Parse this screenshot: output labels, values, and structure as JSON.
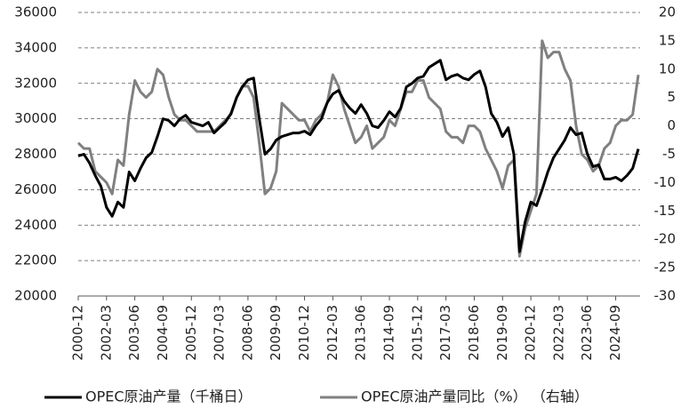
{
  "chart_data": {
    "type": "line",
    "categories": [
      "2000-12",
      null,
      null,
      null,
      null,
      "2002-03",
      null,
      null,
      null,
      null,
      "2003-06",
      null,
      null,
      null,
      null,
      "2004-09",
      null,
      null,
      null,
      null,
      "2005-12",
      null,
      null,
      null,
      null,
      "2007-03",
      null,
      null,
      null,
      null,
      "2008-06",
      null,
      null,
      null,
      null,
      "2009-09",
      null,
      null,
      null,
      null,
      "2010-12",
      null,
      null,
      null,
      null,
      "2012-03",
      null,
      null,
      null,
      null,
      "2013-06",
      null,
      null,
      null,
      null,
      "2014-09",
      null,
      null,
      null,
      null,
      "2015-12",
      null,
      null,
      null,
      null,
      "2017-03",
      null,
      null,
      null,
      null,
      "2018-06",
      null,
      null,
      null,
      null,
      "2019-09",
      null,
      null,
      null,
      null,
      "2020-12",
      null,
      null,
      null,
      null,
      "2022-03",
      null,
      null,
      null,
      null,
      "2023-06",
      null,
      null,
      null,
      null,
      "2024-09",
      null,
      null,
      null,
      null
    ],
    "series": [
      {
        "name": "OPEC原油产量（千桶日）",
        "color": "#000000",
        "values": [
          27900,
          28000,
          27500,
          26800,
          26200,
          25000,
          24500,
          25300,
          25000,
          27000,
          26500,
          27200,
          27800,
          28100,
          29000,
          30000,
          29900,
          29600,
          30000,
          30200,
          29800,
          29700,
          29600,
          29800,
          29200,
          29500,
          29800,
          30300,
          31200,
          31800,
          32200,
          32300,
          30000,
          28000,
          28300,
          28800,
          29000,
          29100,
          29200,
          29200,
          29300,
          29100,
          29600,
          30000,
          30900,
          31400,
          31600,
          31000,
          30600,
          30300,
          30800,
          30300,
          29600,
          29500,
          29900,
          30400,
          30100,
          30600,
          31800,
          32000,
          32300,
          32400,
          32900,
          33100,
          33300,
          32200,
          32400,
          32500,
          32300,
          32200,
          32500,
          32700,
          31800,
          30300,
          29800,
          29000,
          29500,
          28000,
          22500,
          24200,
          25300,
          25100,
          26000,
          27000,
          27800,
          28300,
          28800,
          29500,
          29100,
          29200,
          28000,
          27300,
          27400,
          26600,
          26600,
          26700,
          26500,
          26800,
          27200,
          28300
        ]
      },
      {
        "name": "OPEC原油产量同比（%）  （右轴）",
        "color": "#808080",
        "axis": "y2",
        "values": [
          -3,
          -4,
          -4,
          -8,
          -9,
          -10,
          -12,
          -6,
          -7,
          2,
          8,
          6,
          5,
          6,
          10,
          9,
          5,
          2,
          1,
          1,
          0,
          -1,
          -1,
          -1,
          -1,
          0,
          1,
          2,
          5,
          7,
          7,
          5,
          -3,
          -12,
          -11,
          -8,
          4,
          3,
          2,
          1,
          1,
          -1,
          1,
          2,
          4,
          9,
          7,
          3,
          0,
          -3,
          -2,
          0,
          -4,
          -3,
          -2,
          1,
          0,
          3,
          6,
          6,
          8,
          8,
          5,
          4,
          3,
          -1,
          -2,
          -2,
          -3,
          0,
          0,
          -1,
          -4,
          -6,
          -8,
          -11,
          -7,
          -6,
          -23,
          -18,
          -15,
          -12,
          15,
          12,
          13,
          13,
          10,
          8,
          0,
          -5,
          -6,
          -8,
          -7,
          -4,
          -3,
          0,
          1,
          1,
          2,
          9
        ]
      }
    ],
    "ylim": [
      20000,
      36000
    ],
    "yticks": [
      20000,
      22000,
      24000,
      26000,
      28000,
      30000,
      32000,
      34000,
      36000
    ],
    "y2lim": [
      -30,
      20
    ],
    "y2ticks": [
      -30,
      -25,
      -20,
      -15,
      -10,
      -5,
      0,
      5,
      10,
      15,
      20
    ],
    "grid": true,
    "legend": "bottom"
  }
}
